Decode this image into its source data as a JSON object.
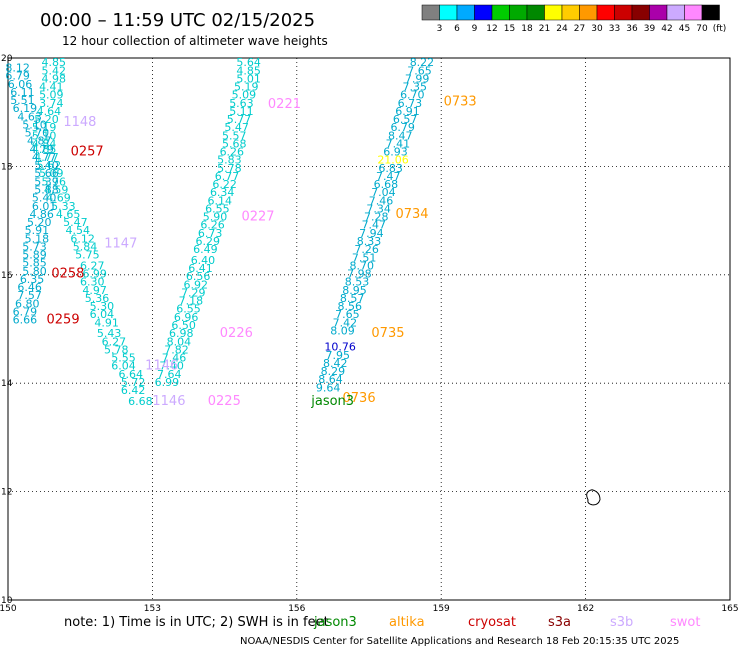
{
  "header": {
    "title": "00:00 – 11:59 UTC 02/15/2025",
    "subtitle": "12 hour collection of altimeter wave heights"
  },
  "colorbar": {
    "colors": [
      "#808080",
      "#00ffff",
      "#00aaff",
      "#0000ff",
      "#00cc00",
      "#00aa00",
      "#008800",
      "#ffff00",
      "#ffcc00",
      "#ff9900",
      "#ff0000",
      "#cc0000",
      "#880000",
      "#aa00aa",
      "#ccaaff",
      "#ff88ff",
      "#000000"
    ],
    "labels": [
      "3",
      "6",
      "9",
      "12",
      "15",
      "18",
      "21",
      "24",
      "27",
      "30",
      "33",
      "36",
      "39",
      "42",
      "45",
      "70",
      "(ft)"
    ]
  },
  "footer": {
    "note": "note:  1) Time is in UTC;  2) SWH is in feet",
    "satellites": [
      {
        "name": "jason3",
        "color": "#008800"
      },
      {
        "name": "altika",
        "color": "#ff9900"
      },
      {
        "name": "cryosat",
        "color": "#cc0000"
      },
      {
        "name": "s3a",
        "color": "#880000"
      },
      {
        "name": "s3b",
        "color": "#ccaaff"
      },
      {
        "name": "swot",
        "color": "#ff88ff"
      }
    ],
    "credit": "NOAA/NESDIS Center for Satellite Applications and Research     18 Feb 20:15:35 UTC 2025"
  },
  "chart_data": {
    "type": "scatter",
    "xlim": [
      150,
      165
    ],
    "ylim": [
      10,
      20
    ],
    "x_ticks": [
      "150",
      "153",
      "156",
      "159",
      "162",
      "165"
    ],
    "y_ticks": [
      "10",
      "12",
      "14",
      "16",
      "18",
      "20"
    ],
    "grid": true,
    "tracks": [
      {
        "color": "#00cccc",
        "points": [
          [
            150.95,
            19.85,
            "4.85"
          ],
          [
            150.95,
            19.7,
            "5.42"
          ],
          [
            150.95,
            19.55,
            "4.98"
          ],
          [
            150.9,
            19.4,
            "4.41"
          ],
          [
            150.9,
            19.25,
            "5.09"
          ],
          [
            150.9,
            19.1,
            "3.74"
          ],
          [
            150.85,
            18.95,
            "4.64"
          ],
          [
            150.8,
            18.8,
            "5.20"
          ],
          [
            150.75,
            18.65,
            "5.19"
          ],
          [
            150.75,
            18.5,
            "5.10"
          ],
          [
            150.75,
            18.35,
            "4.84"
          ],
          [
            150.75,
            18.25,
            "4.85"
          ],
          [
            150.8,
            18.1,
            "4.77"
          ],
          [
            150.85,
            17.95,
            "5.62"
          ],
          [
            150.9,
            17.8,
            "5.09"
          ],
          [
            150.95,
            17.65,
            "5.76"
          ],
          [
            151.0,
            17.5,
            "4.59"
          ],
          [
            151.05,
            17.35,
            "4.69"
          ],
          [
            151.15,
            17.2,
            "5.33"
          ],
          [
            151.25,
            17.05,
            "4.65"
          ],
          [
            151.4,
            16.9,
            "5.47"
          ],
          [
            151.45,
            16.75,
            "4.54"
          ],
          [
            151.55,
            16.6,
            "6.12"
          ],
          [
            151.6,
            16.45,
            "5.84"
          ],
          [
            151.65,
            16.3,
            "5.75"
          ],
          [
            151.75,
            16.1,
            "6.27"
          ],
          [
            151.8,
            15.95,
            "6.99"
          ],
          [
            151.75,
            15.8,
            "6.30"
          ],
          [
            151.8,
            15.65,
            "4.97"
          ],
          [
            151.85,
            15.5,
            "5.36"
          ],
          [
            151.95,
            15.35,
            "5.30"
          ],
          [
            151.95,
            15.2,
            "6.04"
          ],
          [
            152.05,
            15.05,
            "4.91"
          ],
          [
            152.1,
            14.85,
            "5.43"
          ],
          [
            152.2,
            14.7,
            "6.27"
          ],
          [
            152.25,
            14.55,
            "5.78"
          ],
          [
            152.4,
            14.4,
            "5.55"
          ],
          [
            152.4,
            14.25,
            "6.04"
          ],
          [
            152.55,
            14.1,
            "6.64"
          ],
          [
            152.6,
            13.95,
            "5.72"
          ],
          [
            152.6,
            13.8,
            "6.42"
          ],
          [
            152.75,
            13.6,
            "6.68"
          ]
        ]
      },
      {
        "color": "#00aacc",
        "points": [
          [
            150.2,
            19.75,
            "8.12"
          ],
          [
            150.2,
            19.6,
            "6.79"
          ],
          [
            150.25,
            19.45,
            "6.06"
          ],
          [
            150.3,
            19.3,
            "6.11"
          ],
          [
            150.3,
            19.15,
            "5.51"
          ],
          [
            150.35,
            19.0,
            "6.19"
          ],
          [
            150.45,
            18.85,
            "4.63"
          ],
          [
            150.55,
            18.7,
            "5.10"
          ],
          [
            150.6,
            18.55,
            "5.70"
          ],
          [
            150.65,
            18.4,
            "4.87"
          ],
          [
            150.7,
            18.25,
            "4.79"
          ],
          [
            150.75,
            18.1,
            "4.77"
          ],
          [
            150.8,
            17.95,
            "5.40"
          ],
          [
            150.8,
            17.8,
            "5.66"
          ],
          [
            150.8,
            17.65,
            "5.39"
          ],
          [
            150.8,
            17.5,
            "5.88"
          ],
          [
            150.75,
            17.35,
            "5.40"
          ],
          [
            150.75,
            17.2,
            "6.01"
          ],
          [
            150.7,
            17.05,
            "4.86"
          ],
          [
            150.65,
            16.9,
            "5.20"
          ],
          [
            150.6,
            16.75,
            "5.91"
          ],
          [
            150.6,
            16.6,
            "5.18"
          ],
          [
            150.55,
            16.45,
            "5.73"
          ],
          [
            150.55,
            16.3,
            "5.89"
          ],
          [
            150.55,
            16.15,
            "5.85"
          ],
          [
            150.55,
            16.0,
            "5.80"
          ],
          [
            150.5,
            15.85,
            "6.35"
          ],
          [
            150.45,
            15.7,
            "6.46"
          ],
          [
            150.45,
            15.55,
            "7.57"
          ],
          [
            150.4,
            15.4,
            "6.80"
          ],
          [
            150.35,
            15.25,
            "6.79"
          ],
          [
            150.35,
            15.1,
            "6.66"
          ]
        ]
      },
      {
        "color": "#00cccc",
        "points": [
          [
            155.0,
            19.85,
            "5.64"
          ],
          [
            155.0,
            19.7,
            "4.85"
          ],
          [
            155.0,
            19.55,
            "5.01"
          ],
          [
            154.95,
            19.4,
            "5.19"
          ],
          [
            154.9,
            19.25,
            "5.09"
          ],
          [
            154.85,
            19.1,
            "5.63"
          ],
          [
            154.85,
            18.95,
            "5.11"
          ],
          [
            154.8,
            18.8,
            "5.77"
          ],
          [
            154.75,
            18.65,
            "5.47"
          ],
          [
            154.7,
            18.5,
            "5.57"
          ],
          [
            154.7,
            18.35,
            "5.68"
          ],
          [
            154.65,
            18.2,
            "6.26"
          ],
          [
            154.6,
            18.05,
            "5.83"
          ],
          [
            154.6,
            17.9,
            "5.78"
          ],
          [
            154.55,
            17.75,
            "6.77"
          ],
          [
            154.5,
            17.6,
            "6.22"
          ],
          [
            154.45,
            17.45,
            "6.34"
          ],
          [
            154.4,
            17.3,
            "6.14"
          ],
          [
            154.35,
            17.15,
            "6.55"
          ],
          [
            154.3,
            17.0,
            "5.90"
          ],
          [
            154.25,
            16.85,
            "6.26"
          ],
          [
            154.2,
            16.7,
            "6.73"
          ],
          [
            154.15,
            16.55,
            "6.29"
          ],
          [
            154.1,
            16.4,
            "6.49"
          ],
          [
            154.05,
            16.2,
            "6.40"
          ],
          [
            154.0,
            16.05,
            "6.41"
          ],
          [
            153.95,
            15.9,
            "6.56"
          ],
          [
            153.9,
            15.75,
            "6.92"
          ],
          [
            153.85,
            15.6,
            "7.29"
          ],
          [
            153.8,
            15.45,
            "7.18"
          ],
          [
            153.75,
            15.3,
            "6.55"
          ],
          [
            153.7,
            15.15,
            "6.96"
          ],
          [
            153.65,
            15.0,
            "6.50"
          ],
          [
            153.6,
            14.85,
            "6.98"
          ],
          [
            153.55,
            14.7,
            "8.04"
          ],
          [
            153.5,
            14.55,
            "7.82"
          ],
          [
            153.45,
            14.4,
            "7.46"
          ],
          [
            153.4,
            14.25,
            "7.40"
          ],
          [
            153.35,
            14.1,
            "7.64"
          ],
          [
            153.3,
            13.95,
            "6.99"
          ]
        ]
      },
      {
        "color": "#00aacc",
        "points": [
          [
            158.6,
            19.85,
            "8.22"
          ],
          [
            158.55,
            19.7,
            "7.65"
          ],
          [
            158.5,
            19.55,
            "7.99"
          ],
          [
            158.45,
            19.4,
            "7.35"
          ],
          [
            158.4,
            19.25,
            "6.70"
          ],
          [
            158.35,
            19.1,
            "6.73"
          ],
          [
            158.3,
            18.95,
            "6.91"
          ],
          [
            158.25,
            18.8,
            "6.57"
          ],
          [
            158.2,
            18.65,
            "6.79"
          ],
          [
            158.15,
            18.5,
            "8.47"
          ],
          [
            158.1,
            18.35,
            "7.41"
          ],
          [
            158.05,
            18.2,
            "6.93"
          ],
          [
            158.0,
            18.05,
            "21.06"
          ],
          [
            157.95,
            17.9,
            "6.83"
          ],
          [
            157.9,
            17.75,
            "7.47"
          ],
          [
            157.85,
            17.6,
            "6.68"
          ],
          [
            157.8,
            17.45,
            "7.04"
          ],
          [
            157.75,
            17.3,
            "7.46"
          ],
          [
            157.7,
            17.15,
            "7.34"
          ],
          [
            157.65,
            17.0,
            "7.28"
          ],
          [
            157.6,
            16.85,
            "7.47"
          ],
          [
            157.55,
            16.7,
            "7.94"
          ],
          [
            157.5,
            16.55,
            "8.33"
          ],
          [
            157.45,
            16.4,
            "7.26"
          ],
          [
            157.4,
            16.25,
            "7.51"
          ],
          [
            157.35,
            16.1,
            "8.70"
          ],
          [
            157.3,
            15.95,
            "7.98"
          ],
          [
            157.25,
            15.8,
            "8.53"
          ],
          [
            157.2,
            15.65,
            "8.95"
          ],
          [
            157.15,
            15.5,
            "8.57"
          ],
          [
            157.1,
            15.35,
            "8.56"
          ],
          [
            157.05,
            15.2,
            "7.65"
          ],
          [
            157.0,
            15.05,
            "7.42"
          ],
          [
            156.95,
            14.9,
            "8.09"
          ],
          [
            156.9,
            14.6,
            "10.76"
          ],
          [
            156.85,
            14.45,
            "7.95"
          ],
          [
            156.8,
            14.3,
            "8.42"
          ],
          [
            156.75,
            14.15,
            "8.29"
          ],
          [
            156.7,
            14.0,
            "8.64"
          ],
          [
            156.65,
            13.85,
            "9.64"
          ]
        ]
      }
    ],
    "pass_labels": [
      {
        "text": "1148",
        "x": 151.15,
        "y": 18.75,
        "color": "#ccaaff"
      },
      {
        "text": "0257",
        "x": 151.3,
        "y": 18.2,
        "color": "#cc0000"
      },
      {
        "text": "0221",
        "x": 155.4,
        "y": 19.08,
        "color": "#ff88ff"
      },
      {
        "text": "0733",
        "x": 159.05,
        "y": 19.12,
        "color": "#ff9900"
      },
      {
        "text": "0227",
        "x": 154.85,
        "y": 17.0,
        "color": "#ff88ff"
      },
      {
        "text": "0734",
        "x": 158.05,
        "y": 17.05,
        "color": "#ff9900"
      },
      {
        "text": "1147",
        "x": 152.0,
        "y": 16.5,
        "color": "#ccaaff"
      },
      {
        "text": "0258",
        "x": 150.9,
        "y": 15.95,
        "color": "#cc0000"
      },
      {
        "text": "0259",
        "x": 150.8,
        "y": 15.1,
        "color": "#cc0000"
      },
      {
        "text": "0226",
        "x": 154.4,
        "y": 14.85,
        "color": "#ff88ff"
      },
      {
        "text": "0735",
        "x": 157.55,
        "y": 14.85,
        "color": "#ff9900"
      },
      {
        "text": "1146",
        "x": 152.85,
        "y": 14.25,
        "color": "#ccaaff"
      },
      {
        "text": "1146",
        "x": 153.0,
        "y": 13.6,
        "color": "#ccaaff"
      },
      {
        "text": "0225",
        "x": 154.15,
        "y": 13.6,
        "color": "#ff88ff"
      },
      {
        "text": "0736",
        "x": 156.95,
        "y": 13.65,
        "color": "#ff9900"
      },
      {
        "text": "jason3",
        "x": 156.3,
        "y": 13.6,
        "color": "#008800"
      }
    ]
  }
}
